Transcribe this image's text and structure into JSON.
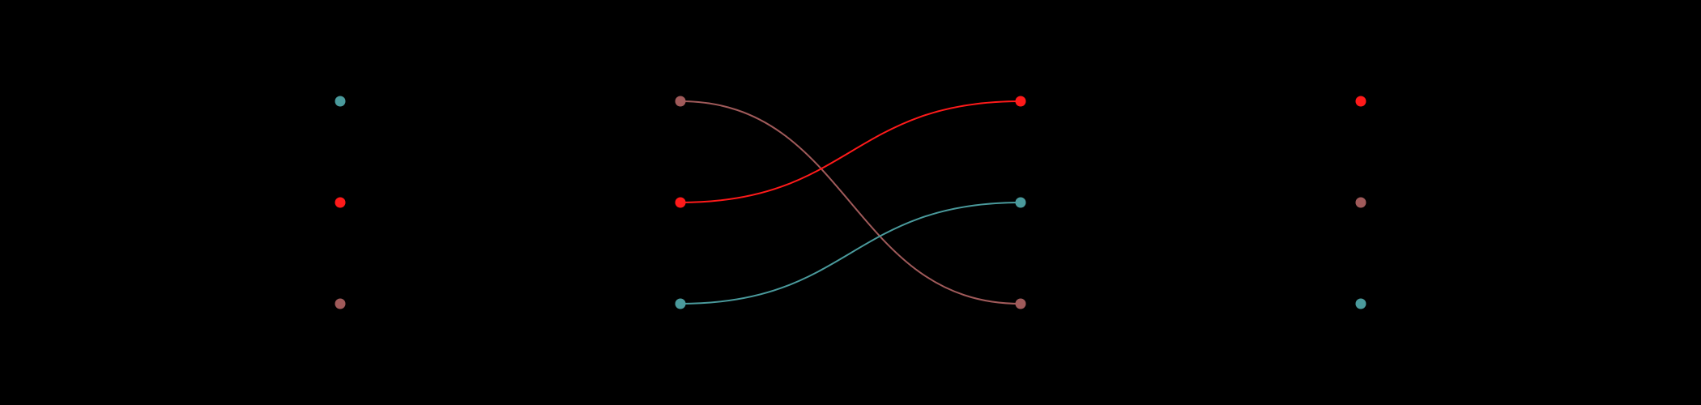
{
  "background": "#000000",
  "colors": {
    "teal": "#4a9a9c",
    "red": "#ff1a1a",
    "brown": "#a05a5a"
  },
  "columns": [
    {
      "id": "col-1",
      "dots": [
        "teal",
        "red",
        "brown"
      ]
    },
    {
      "id": "col-2",
      "dots": [
        "brown",
        "red",
        "teal"
      ]
    },
    {
      "id": "col-3",
      "dots": [
        "red",
        "teal",
        "brown"
      ]
    },
    {
      "id": "col-4",
      "dots": [
        "red",
        "brown",
        "teal"
      ]
    }
  ],
  "links": [
    {
      "color": "brown",
      "from": [
        2,
        1
      ],
      "to": [
        3,
        3
      ]
    },
    {
      "color": "red",
      "from": [
        2,
        2
      ],
      "to": [
        3,
        1
      ]
    },
    {
      "color": "teal",
      "from": [
        2,
        3
      ],
      "to": [
        3,
        2
      ]
    }
  ]
}
